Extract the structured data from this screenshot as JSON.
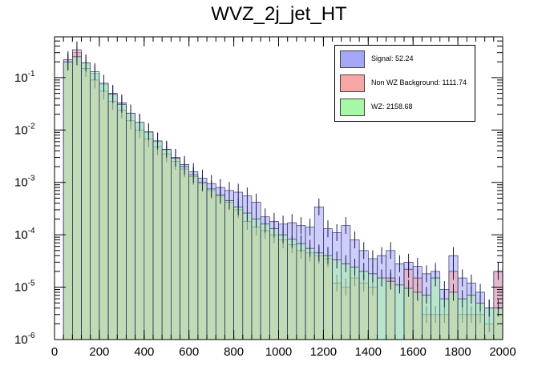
{
  "chart_data": {
    "type": "histogram",
    "title": "WVZ_2j_jet_HT",
    "xlabel": "",
    "ylabel": "",
    "xlim": [
      0,
      2000
    ],
    "ylim": [
      1e-06,
      0.6
    ],
    "yscale": "log",
    "bin_width": 40,
    "x_ticks": [
      "0",
      "200",
      "400",
      "600",
      "800",
      "1000",
      "1200",
      "1400",
      "1600",
      "1800",
      "2000"
    ],
    "y_ticks": [
      {
        "base": "10",
        "exp": "-6"
      },
      {
        "base": "10",
        "exp": "-5"
      },
      {
        "base": "10",
        "exp": "-4"
      },
      {
        "base": "10",
        "exp": "-3"
      },
      {
        "base": "10",
        "exp": "-2"
      },
      {
        "base": "10",
        "exp": "-1"
      }
    ],
    "legend_position": "top-right",
    "series": [
      {
        "name": "Signal",
        "legend_label": "Signal: 52.24",
        "color": "#a6a6f7",
        "edge_color": "#0000cc",
        "values": [
          0,
          0.22,
          0.3,
          0.19,
          0.12,
          0.075,
          0.05,
          0.033,
          0.021,
          0.014,
          0.009,
          0.006,
          0.0042,
          0.003,
          0.0022,
          0.0016,
          0.0012,
          0.00095,
          0.0008,
          0.0007,
          0.00065,
          0.00055,
          0.00042,
          0.00022,
          0.00018,
          0.00016,
          0.00017,
          0.00015,
          0.00014,
          0.00034,
          0.00013,
          0.00011,
          0.00015,
          8e-05,
          5e-05,
          3.5e-05,
          4e-05,
          5e-05,
          2.8e-05,
          3e-05,
          2.5e-05,
          1.8e-05,
          2e-05,
          9e-06,
          4e-05,
          1.5e-05,
          1.2e-05,
          8e-06,
          4e-06,
          2e-05
        ]
      },
      {
        "name": "Non WZ Background",
        "legend_label": "Non WZ Background: 1111.74",
        "color": "#f7a6a6",
        "edge_color": "#cc0000",
        "values": [
          0,
          0.2,
          0.34,
          0.15,
          0.09,
          0.055,
          0.035,
          0.024,
          0.015,
          0.01,
          0.0068,
          0.0048,
          0.0035,
          0.0025,
          0.0018,
          0.0013,
          0.00095,
          0.0007,
          0.00055,
          0.00042,
          0.0003,
          0.00018,
          0.00014,
          0.00012,
          0.0001,
          8e-05,
          6.5e-05,
          5e-05,
          4.5e-05,
          4e-05,
          3.5e-05,
          1.2e-05,
          1e-05,
          1.5e-05,
          1.2e-05,
          1e-05,
          1e-06,
          1.5e-05,
          1e-06,
          2.2e-05,
          1.5e-05,
          3e-06,
          3e-06,
          3e-06,
          2e-05,
          3e-06,
          3e-06,
          3e-06,
          2e-06,
          2e-05
        ]
      },
      {
        "name": "WZ",
        "legend_label": "WZ: 2158.68",
        "color": "#a6f7a6",
        "edge_color": "#00aa00",
        "values": [
          0,
          0.2,
          0.25,
          0.19,
          0.13,
          0.078,
          0.048,
          0.031,
          0.021,
          0.014,
          0.0093,
          0.0062,
          0.0043,
          0.0029,
          0.002,
          0.0014,
          0.001,
          0.00075,
          0.00058,
          0.00045,
          0.00034,
          0.00026,
          0.0002,
          0.00016,
          0.00013,
          0.0001,
          8.2e-05,
          6.8e-05,
          5.5e-05,
          4.5e-05,
          4e-05,
          3.3e-05,
          2.8e-05,
          2.4e-05,
          2e-05,
          1.8e-05,
          1.5e-05,
          1.3e-05,
          1.1e-05,
          9.5e-06,
          8e-06,
          7e-06,
          1.5e-05,
          6e-06,
          8e-06,
          6e-06,
          7e-06,
          5e-06,
          4e-06,
          4e-06
        ]
      }
    ]
  }
}
